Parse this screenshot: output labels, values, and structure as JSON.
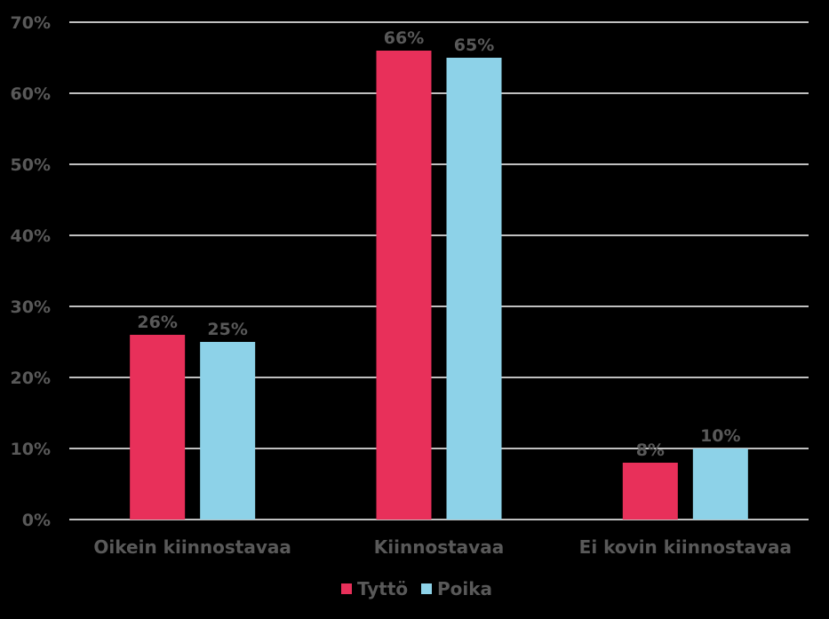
{
  "chart_data": {
    "type": "bar",
    "title": "",
    "xlabel": "",
    "ylabel": "",
    "categories": [
      "Oikein kiinnostavaa",
      "Kiinnostavaa",
      "Ei kovin kiinnostavaa"
    ],
    "series": [
      {
        "name": "Tyttö",
        "color": "#E8305A",
        "values": [
          26,
          66,
          8
        ],
        "labels": [
          "26%",
          "66%",
          "8%"
        ]
      },
      {
        "name": "Poika",
        "color": "#8DD2E8",
        "values": [
          25,
          65,
          10
        ],
        "labels": [
          "25%",
          "65%",
          "10%"
        ]
      }
    ],
    "ylim": [
      0,
      70
    ],
    "yticks": [
      0,
      10,
      20,
      30,
      40,
      50,
      60,
      70
    ],
    "ytick_labels": [
      "0%",
      "10%",
      "20%",
      "30%",
      "40%",
      "50%",
      "60%",
      "70%"
    ],
    "grid": true,
    "legend_position": "bottom-center",
    "background": "#000000",
    "gridline_color": "#FFFFFF",
    "text_color": "#595959"
  }
}
